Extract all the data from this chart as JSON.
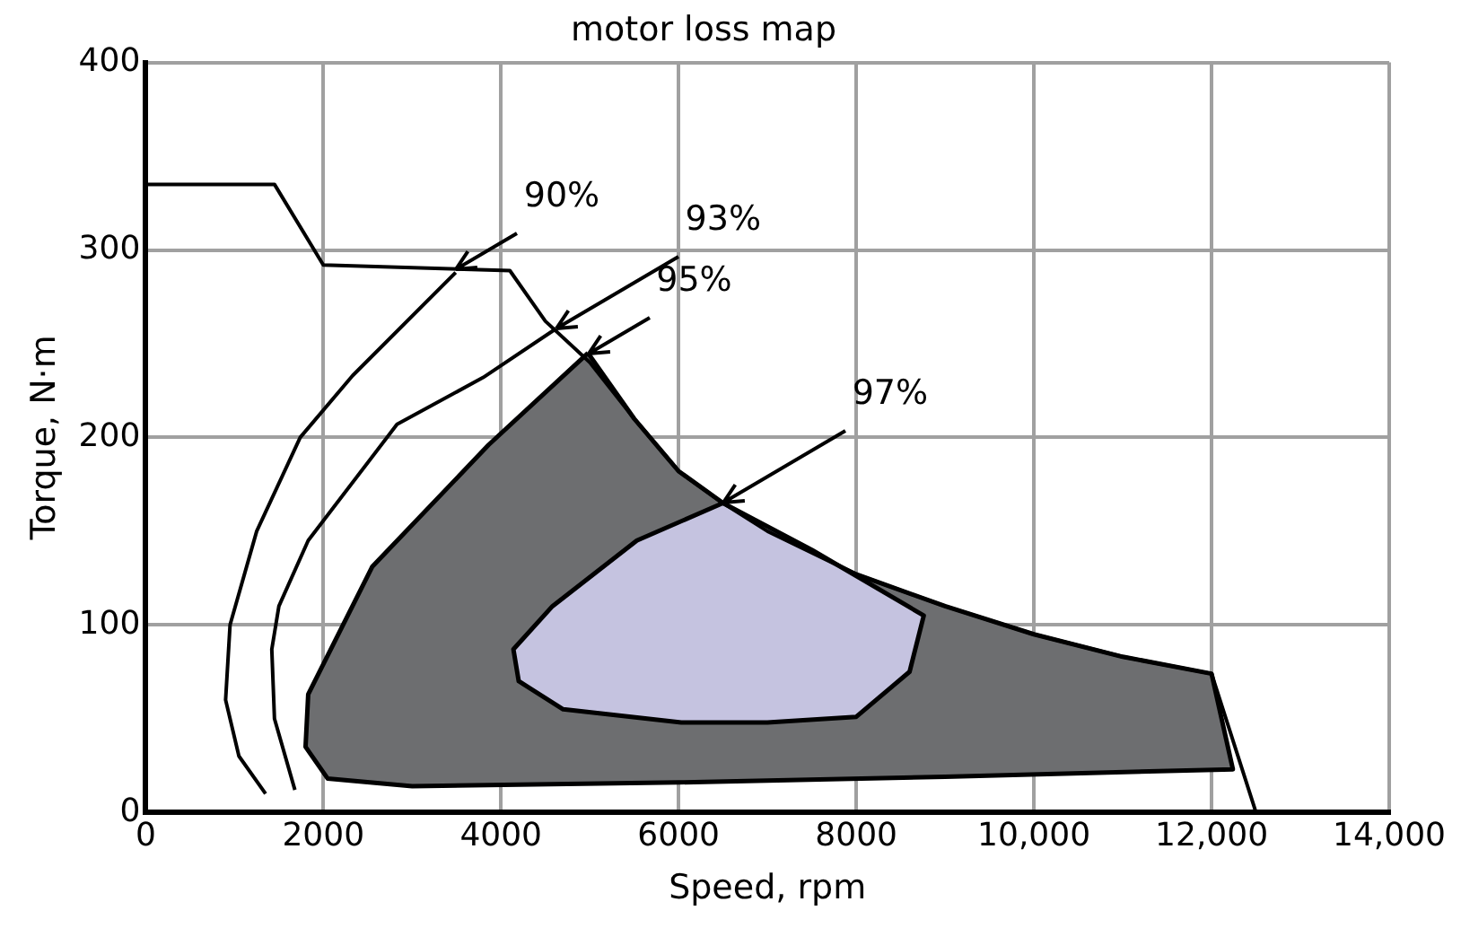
{
  "chart_data": {
    "type": "line",
    "title": "motor loss map",
    "xlabel": "Speed, rpm",
    "ylabel": "Torque, N·m",
    "xlim": [
      0,
      14000
    ],
    "xticks": [
      0,
      2000,
      4000,
      6000,
      8000,
      {
        "value": 10000,
        "label": "10,000"
      },
      {
        "value": 12000,
        "label": "12,000"
      },
      {
        "value": 14000,
        "label": "14,000"
      }
    ],
    "ylim": [
      0,
      400
    ],
    "yticks": [
      0,
      100,
      200,
      300,
      400
    ],
    "grid": true,
    "marker": "none",
    "line_style": "solid",
    "annotations": [
      {
        "text": "90%",
        "x": 3490,
        "y": 290
      },
      {
        "text": "93%",
        "x": 4620,
        "y": 258
      },
      {
        "text": "95%",
        "x": 4980,
        "y": 245
      },
      {
        "text": "97%",
        "x": 6500,
        "y": 165
      }
    ],
    "series": [
      {
        "type": "area",
        "color": "#6d6e70",
        "x": [
          4980,
          3860,
          2550,
          1830,
          1800,
          2050,
          3000,
          6000,
          9000,
          12240,
          12000,
          11000,
          10000,
          9000,
          8000,
          7000,
          6500,
          6000,
          5500,
          4980
        ],
        "values": [
          245,
          196,
          131,
          63,
          35,
          18,
          14,
          16,
          19,
          23,
          74,
          83,
          95,
          110,
          127,
          150,
          165,
          182,
          210,
          245
        ]
      },
      {
        "type": "area",
        "color": "#c5c3e0",
        "x": [
          6500,
          7500,
          8760,
          8600,
          8000,
          7000,
          6030,
          4700,
          4200,
          4140,
          4580,
          5530,
          6500
        ],
        "values": [
          165,
          140,
          105,
          75,
          51,
          48,
          48,
          55,
          70,
          87,
          110,
          145,
          165
        ]
      },
      {
        "color": "#000000",
        "x": [
          0,
          1450,
          2000,
          4100,
          4500,
          5000,
          5500,
          6000,
          6500,
          7000,
          8000,
          9000,
          10000,
          11000,
          12000,
          12500
        ],
        "values": [
          335,
          335,
          292,
          289,
          262,
          240,
          210,
          182,
          165,
          150,
          127,
          110,
          95,
          83,
          74,
          0
        ]
      },
      {
        "color": "#000000",
        "x": [
          3490,
          2330,
          1740,
          1250,
          950,
          900,
          1050,
          1350
        ],
        "values": [
          288,
          233,
          200,
          150,
          100,
          60,
          30,
          10
        ]
      },
      {
        "color": "#000000",
        "x": [
          4620,
          3800,
          2830,
          1830,
          1500,
          1420,
          1450,
          1680
        ],
        "values": [
          258,
          232,
          207,
          145,
          110,
          87,
          50,
          12
        ]
      }
    ]
  }
}
